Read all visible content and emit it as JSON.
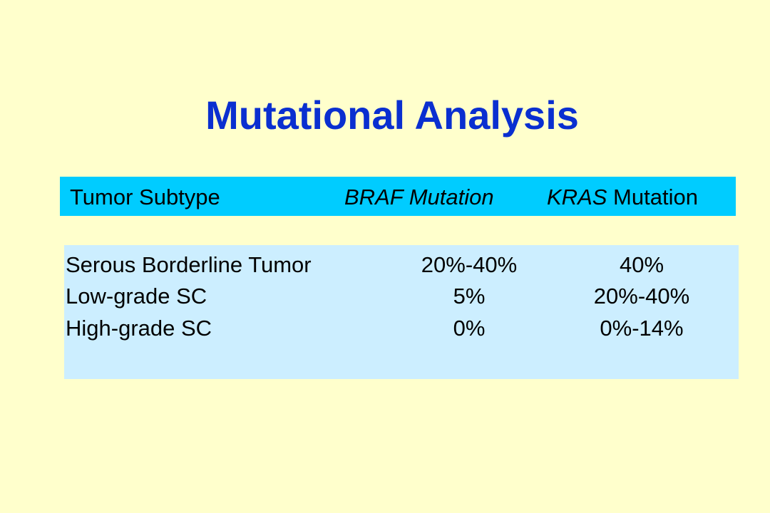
{
  "slide": {
    "title": "Mutational Analysis"
  },
  "table": {
    "headers": {
      "subtype": "Tumor Subtype",
      "braf": "BRAF Mutation",
      "kras_gene": "KRAS",
      "kras_suffix": " Mutation"
    },
    "rows": [
      {
        "subtype": "Serous Borderline Tumor",
        "braf": "20%-40%",
        "kras": "40%"
      },
      {
        "subtype": "Low-grade SC",
        "braf": "5%",
        "kras": "20%-40%"
      },
      {
        "subtype": "High-grade SC",
        "braf": "0%",
        "kras": "0%-14%"
      }
    ]
  },
  "colors": {
    "background": "#ffffcc",
    "title": "#0a2fd0",
    "header_bar": "#00ccff",
    "data_panel": "#cceeff"
  }
}
